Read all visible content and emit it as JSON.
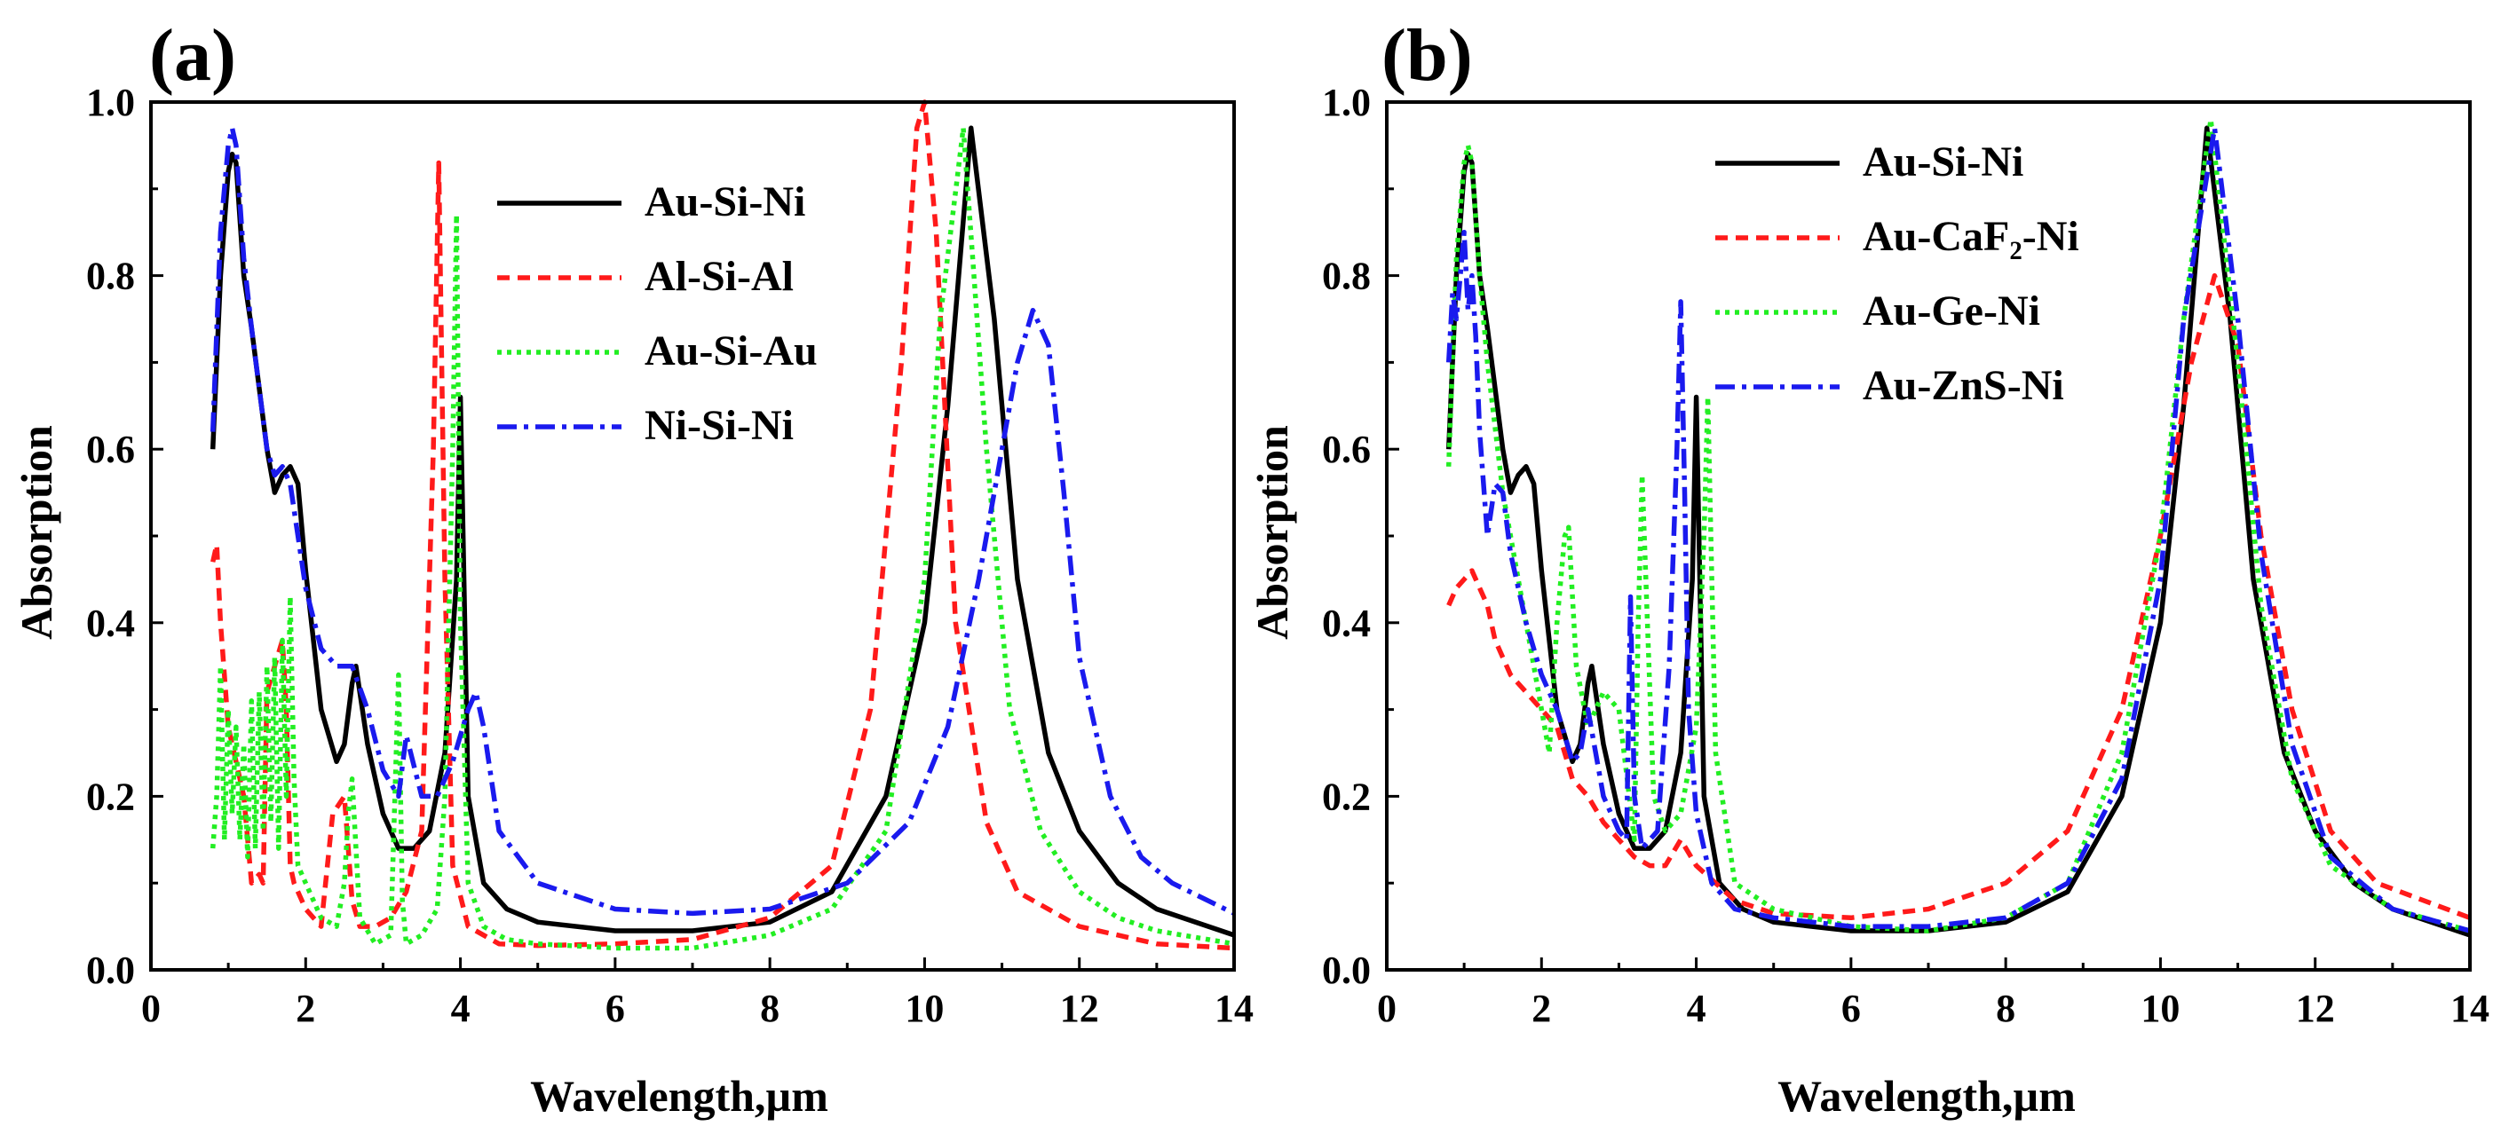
{
  "figure": {
    "xlabel": "Wavelength,µm",
    "ylabel": "Absorption"
  },
  "chart_data": [
    {
      "type": "line",
      "panel_label": "(a)",
      "xlabel": "Wavelength,µm",
      "ylabel": "Absorption",
      "xlim": [
        0,
        14
      ],
      "ylim": [
        0.0,
        1.0
      ],
      "xticks": [
        "0",
        "2",
        "4",
        "6",
        "8",
        "10",
        "12",
        "14"
      ],
      "yticks": [
        "0.0",
        "0.2",
        "0.4",
        "0.6",
        "0.8",
        "1.0"
      ],
      "legend_position": "top-center",
      "series": [
        {
          "name": "Au-Si-Ni",
          "legend_label": "Au-Si-Ni",
          "color": "#000000",
          "dash": "solid",
          "x": [
            0.8,
            0.9,
            1.0,
            1.05,
            1.1,
            1.2,
            1.3,
            1.5,
            1.6,
            1.7,
            1.8,
            1.9,
            2.0,
            2.2,
            2.4,
            2.5,
            2.6,
            2.65,
            2.8,
            3.0,
            3.2,
            3.4,
            3.6,
            3.8,
            3.95,
            4.0,
            4.1,
            4.3,
            4.6,
            5.0,
            6.0,
            7.0,
            8.0,
            8.8,
            9.5,
            10.0,
            10.3,
            10.6,
            10.9,
            11.2,
            11.6,
            12.0,
            12.5,
            13.0,
            14.0
          ],
          "y": [
            0.6,
            0.8,
            0.92,
            0.94,
            0.93,
            0.8,
            0.74,
            0.6,
            0.55,
            0.57,
            0.58,
            0.56,
            0.46,
            0.3,
            0.24,
            0.26,
            0.33,
            0.35,
            0.26,
            0.18,
            0.14,
            0.14,
            0.16,
            0.25,
            0.45,
            0.66,
            0.2,
            0.1,
            0.07,
            0.055,
            0.045,
            0.045,
            0.055,
            0.09,
            0.2,
            0.4,
            0.65,
            0.97,
            0.75,
            0.45,
            0.25,
            0.16,
            0.1,
            0.07,
            0.04
          ]
        },
        {
          "name": "Al-Si-Al",
          "legend_label": "Al-Si-Al",
          "color": "#ff1a1a",
          "dash": "dash",
          "x": [
            0.8,
            0.85,
            0.9,
            1.0,
            1.1,
            1.2,
            1.3,
            1.4,
            1.45,
            1.5,
            1.6,
            1.7,
            1.75,
            1.8,
            1.85,
            2.0,
            2.2,
            2.35,
            2.5,
            2.6,
            2.7,
            2.9,
            3.1,
            3.3,
            3.5,
            3.65,
            3.72,
            3.8,
            3.9,
            4.1,
            4.5,
            5.0,
            6.0,
            7.0,
            8.0,
            8.8,
            9.3,
            9.7,
            9.9,
            10.0,
            10.15,
            10.4,
            10.8,
            11.2,
            12.0,
            13.0,
            14.0
          ],
          "y": [
            0.47,
            0.49,
            0.4,
            0.28,
            0.24,
            0.2,
            0.1,
            0.11,
            0.1,
            0.32,
            0.35,
            0.38,
            0.3,
            0.12,
            0.1,
            0.07,
            0.05,
            0.18,
            0.2,
            0.08,
            0.05,
            0.05,
            0.06,
            0.09,
            0.16,
            0.6,
            0.93,
            0.45,
            0.12,
            0.05,
            0.03,
            0.028,
            0.03,
            0.035,
            0.06,
            0.12,
            0.3,
            0.7,
            0.97,
            1.0,
            0.85,
            0.4,
            0.17,
            0.09,
            0.05,
            0.03,
            0.025
          ]
        },
        {
          "name": "Au-Si-Au",
          "legend_label": "Au-Si-Au",
          "color": "#22ee22",
          "dash": "dot",
          "x": [
            0.8,
            0.85,
            0.9,
            0.95,
            1.0,
            1.05,
            1.1,
            1.15,
            1.2,
            1.25,
            1.3,
            1.35,
            1.4,
            1.45,
            1.5,
            1.55,
            1.6,
            1.65,
            1.7,
            1.75,
            1.8,
            1.85,
            1.9,
            2.0,
            2.2,
            2.4,
            2.5,
            2.55,
            2.6,
            2.7,
            2.9,
            3.1,
            3.2,
            3.25,
            3.3,
            3.5,
            3.7,
            3.8,
            3.9,
            3.95,
            4.0,
            4.1,
            4.3,
            4.6,
            5.0,
            6.0,
            7.0,
            8.0,
            8.8,
            9.5,
            10.0,
            10.2,
            10.5,
            10.8,
            11.1,
            11.5,
            12.0,
            12.5,
            13.0,
            14.0
          ],
          "y": [
            0.14,
            0.2,
            0.35,
            0.15,
            0.3,
            0.18,
            0.28,
            0.15,
            0.26,
            0.13,
            0.31,
            0.14,
            0.32,
            0.16,
            0.35,
            0.17,
            0.36,
            0.14,
            0.38,
            0.2,
            0.43,
            0.22,
            0.12,
            0.1,
            0.06,
            0.05,
            0.1,
            0.18,
            0.22,
            0.06,
            0.03,
            0.04,
            0.34,
            0.08,
            0.03,
            0.04,
            0.07,
            0.2,
            0.6,
            0.87,
            0.4,
            0.1,
            0.05,
            0.035,
            0.03,
            0.025,
            0.025,
            0.04,
            0.07,
            0.16,
            0.45,
            0.75,
            0.97,
            0.6,
            0.3,
            0.16,
            0.09,
            0.06,
            0.045,
            0.03
          ]
        },
        {
          "name": "Ni-Si-Ni",
          "legend_label": "Ni-Si-Ni",
          "color": "#1a1aee",
          "dash": "dashdot",
          "x": [
            0.8,
            0.9,
            1.0,
            1.05,
            1.1,
            1.2,
            1.3,
            1.5,
            1.6,
            1.7,
            1.8,
            1.9,
            2.0,
            2.2,
            2.4,
            2.6,
            2.8,
            3.0,
            3.2,
            3.3,
            3.5,
            3.7,
            3.9,
            4.1,
            4.2,
            4.3,
            4.5,
            5.0,
            6.0,
            7.0,
            8.0,
            9.0,
            9.8,
            10.3,
            10.7,
            11.0,
            11.2,
            11.4,
            11.6,
            11.8,
            12.0,
            12.4,
            12.8,
            13.2,
            14.0
          ],
          "y": [
            0.62,
            0.85,
            0.95,
            0.97,
            0.95,
            0.82,
            0.74,
            0.6,
            0.57,
            0.58,
            0.56,
            0.5,
            0.44,
            0.37,
            0.35,
            0.35,
            0.3,
            0.23,
            0.2,
            0.27,
            0.2,
            0.2,
            0.24,
            0.3,
            0.32,
            0.28,
            0.16,
            0.1,
            0.07,
            0.065,
            0.07,
            0.1,
            0.17,
            0.28,
            0.45,
            0.6,
            0.7,
            0.76,
            0.72,
            0.55,
            0.36,
            0.2,
            0.13,
            0.1,
            0.065
          ]
        }
      ]
    },
    {
      "type": "line",
      "panel_label": "(b)",
      "xlabel": "Wavelength,µm",
      "ylabel": "Absorption",
      "xlim": [
        0,
        14
      ],
      "ylim": [
        0.0,
        1.0
      ],
      "xticks": [
        "0",
        "2",
        "4",
        "6",
        "8",
        "10",
        "12",
        "14"
      ],
      "yticks": [
        "0.0",
        "0.2",
        "0.4",
        "0.6",
        "0.8",
        "1.0"
      ],
      "legend_position": "top-center",
      "series": [
        {
          "name": "Au-Si-Ni",
          "legend_label": "Au-Si-Ni",
          "color": "#000000",
          "dash": "solid",
          "x": [
            0.8,
            0.9,
            1.0,
            1.05,
            1.1,
            1.2,
            1.3,
            1.5,
            1.6,
            1.7,
            1.8,
            1.9,
            2.0,
            2.2,
            2.4,
            2.5,
            2.6,
            2.65,
            2.8,
            3.0,
            3.2,
            3.4,
            3.6,
            3.8,
            3.95,
            4.0,
            4.1,
            4.3,
            4.6,
            5.0,
            6.0,
            7.0,
            8.0,
            8.8,
            9.5,
            10.0,
            10.3,
            10.6,
            10.9,
            11.2,
            11.6,
            12.0,
            12.5,
            13.0,
            14.0
          ],
          "y": [
            0.6,
            0.8,
            0.92,
            0.94,
            0.93,
            0.8,
            0.74,
            0.6,
            0.55,
            0.57,
            0.58,
            0.56,
            0.46,
            0.3,
            0.24,
            0.26,
            0.33,
            0.35,
            0.26,
            0.18,
            0.14,
            0.14,
            0.16,
            0.25,
            0.45,
            0.66,
            0.2,
            0.1,
            0.07,
            0.055,
            0.045,
            0.045,
            0.055,
            0.09,
            0.2,
            0.4,
            0.65,
            0.97,
            0.75,
            0.45,
            0.25,
            0.16,
            0.1,
            0.07,
            0.04
          ]
        },
        {
          "name": "Au-CaF2-Ni",
          "legend_label": "Au-CaF₂-Ni",
          "color": "#ff1a1a",
          "dash": "dash",
          "x": [
            0.8,
            0.9,
            1.0,
            1.1,
            1.2,
            1.3,
            1.4,
            1.6,
            1.8,
            2.0,
            2.2,
            2.4,
            2.6,
            2.8,
            3.0,
            3.2,
            3.4,
            3.6,
            3.8,
            4.0,
            4.5,
            5.0,
            6.0,
            7.0,
            8.0,
            8.8,
            9.5,
            10.0,
            10.4,
            10.7,
            11.0,
            11.3,
            11.7,
            12.2,
            12.8,
            14.0
          ],
          "y": [
            0.42,
            0.44,
            0.45,
            0.46,
            0.44,
            0.42,
            0.38,
            0.34,
            0.32,
            0.3,
            0.28,
            0.22,
            0.2,
            0.17,
            0.15,
            0.13,
            0.12,
            0.12,
            0.15,
            0.12,
            0.08,
            0.065,
            0.06,
            0.07,
            0.1,
            0.16,
            0.3,
            0.5,
            0.7,
            0.8,
            0.72,
            0.5,
            0.3,
            0.16,
            0.1,
            0.06
          ]
        },
        {
          "name": "Au-Ge-Ni",
          "legend_label": "Au-Ge-Ni",
          "color": "#22ee22",
          "dash": "dot",
          "x": [
            0.8,
            0.9,
            1.0,
            1.05,
            1.1,
            1.2,
            1.3,
            1.5,
            1.7,
            1.9,
            2.0,
            2.1,
            2.2,
            2.3,
            2.35,
            2.45,
            2.6,
            2.8,
            3.0,
            3.2,
            3.25,
            3.3,
            3.45,
            3.6,
            3.8,
            4.0,
            4.1,
            4.15,
            4.25,
            4.5,
            5.0,
            6.0,
            7.0,
            8.0,
            8.8,
            9.5,
            10.0,
            10.3,
            10.65,
            11.0,
            11.3,
            11.7,
            12.2,
            13.0,
            14.0
          ],
          "y": [
            0.58,
            0.82,
            0.93,
            0.95,
            0.93,
            0.8,
            0.7,
            0.55,
            0.45,
            0.35,
            0.3,
            0.25,
            0.4,
            0.5,
            0.51,
            0.35,
            0.28,
            0.32,
            0.3,
            0.15,
            0.4,
            0.57,
            0.2,
            0.16,
            0.18,
            0.28,
            0.5,
            0.66,
            0.25,
            0.1,
            0.07,
            0.05,
            0.045,
            0.06,
            0.1,
            0.25,
            0.5,
            0.75,
            0.98,
            0.7,
            0.42,
            0.22,
            0.12,
            0.07,
            0.045
          ]
        },
        {
          "name": "Au-ZnS-Ni",
          "legend_label": "Au-ZnS-Ni",
          "color": "#1a1aee",
          "dash": "dashdot",
          "x": [
            0.8,
            0.85,
            0.9,
            0.95,
            1.0,
            1.05,
            1.1,
            1.15,
            1.2,
            1.3,
            1.4,
            1.5,
            1.6,
            1.8,
            2.0,
            2.2,
            2.4,
            2.5,
            2.6,
            2.8,
            3.0,
            3.1,
            3.15,
            3.2,
            3.3,
            3.5,
            3.65,
            3.75,
            3.8,
            3.85,
            3.9,
            4.0,
            4.2,
            4.5,
            5.0,
            6.0,
            7.0,
            8.0,
            8.8,
            9.5,
            10.0,
            10.3,
            10.7,
            11.0,
            11.3,
            11.7,
            12.2,
            13.0,
            14.0
          ],
          "y": [
            0.7,
            0.78,
            0.75,
            0.8,
            0.85,
            0.76,
            0.8,
            0.73,
            0.62,
            0.5,
            0.56,
            0.55,
            0.48,
            0.4,
            0.34,
            0.3,
            0.24,
            0.25,
            0.3,
            0.2,
            0.16,
            0.15,
            0.43,
            0.2,
            0.14,
            0.16,
            0.35,
            0.6,
            0.77,
            0.55,
            0.3,
            0.18,
            0.1,
            0.07,
            0.06,
            0.05,
            0.05,
            0.06,
            0.1,
            0.22,
            0.45,
            0.75,
            0.97,
            0.75,
            0.48,
            0.26,
            0.13,
            0.07,
            0.045
          ]
        }
      ]
    }
  ]
}
